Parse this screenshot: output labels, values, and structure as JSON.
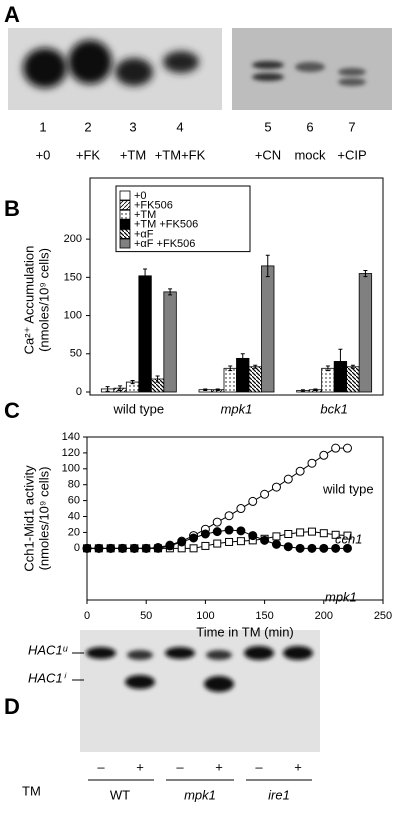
{
  "panel_labels": [
    "A",
    "B",
    "C",
    "D"
  ],
  "gel_a": {
    "lanes": [
      "1",
      "2",
      "3",
      "4",
      "5",
      "6",
      "7"
    ],
    "treatments": [
      "+0",
      "+FK",
      "+TM",
      "+TM+FK",
      "+CN",
      "mock",
      "+CIP"
    ]
  },
  "chart_data": [
    {
      "type": "bar",
      "ylabel": [
        "Ca²⁺ Accumulation",
        "(nmoles/10⁹ cells)"
      ],
      "categories": [
        "wild type",
        "mpk1",
        "bck1"
      ],
      "series": [
        {
          "name": "+0",
          "color": "#ffffff",
          "pattern": "none",
          "values": [
            4,
            3,
            2
          ],
          "errors": [
            3,
            1,
            1
          ]
        },
        {
          "name": "+FK506",
          "color": "#ffffff",
          "pattern": "hatch",
          "values": [
            5,
            3,
            3
          ],
          "errors": [
            3,
            1,
            1
          ]
        },
        {
          "name": "+TM",
          "color": "#ffffff",
          "pattern": "dots",
          "values": [
            13,
            31,
            31
          ],
          "errors": [
            2,
            3,
            3
          ]
        },
        {
          "name": "+TM +FK506",
          "color": "#000000",
          "pattern": "none",
          "values": [
            152,
            44,
            40
          ],
          "errors": [
            9,
            6,
            16
          ]
        },
        {
          "name": "+αF",
          "color": "#ffffff",
          "pattern": "diag",
          "values": [
            17,
            33,
            33
          ],
          "errors": [
            4,
            2,
            2
          ]
        },
        {
          "name": "+αF +FK506",
          "color": "#808080",
          "pattern": "none",
          "values": [
            131,
            165,
            155
          ],
          "errors": [
            4,
            14,
            4
          ]
        }
      ],
      "ylim": [
        0,
        280
      ],
      "yticks": [
        0,
        50,
        100,
        150,
        200
      ],
      "legend": "top-left"
    },
    {
      "type": "line",
      "xlabel": "Time in TM (min)",
      "ylabel": [
        "Cch1-Mid1 activity",
        "(nmoles/10⁹ cells)"
      ],
      "x": [
        0,
        10,
        20,
        30,
        40,
        50,
        60,
        70,
        80,
        90,
        100,
        110,
        120,
        130,
        140,
        150,
        160,
        170,
        180,
        190,
        200,
        210,
        220
      ],
      "series": [
        {
          "name": "wild type",
          "color": "#ffffff",
          "marker": "circle",
          "values": [
            0,
            0,
            0,
            0,
            0,
            0,
            1,
            4,
            9,
            16,
            24,
            33,
            41,
            50,
            59,
            68,
            77,
            87,
            97,
            107,
            117,
            126,
            126
          ]
        },
        {
          "name": "cch1",
          "color": "#ffffff",
          "marker": "square",
          "values": [
            0,
            0,
            0,
            0,
            0,
            0,
            0,
            0,
            0,
            0,
            3,
            6,
            8,
            9,
            10,
            12,
            15,
            18,
            20,
            21,
            19,
            17,
            16
          ]
        },
        {
          "name": "mpk1",
          "color": "#000000",
          "marker": "circle",
          "values": [
            0,
            0,
            0,
            0,
            0,
            0,
            0,
            3,
            8,
            13,
            18,
            21,
            23,
            22,
            16,
            10,
            5,
            2,
            0,
            0,
            0,
            0,
            0
          ]
        }
      ],
      "xlim": [
        0,
        250
      ],
      "xticks": [
        0,
        50,
        100,
        150,
        200,
        250
      ],
      "ylim": [
        -65,
        140
      ],
      "yticks": [
        0,
        20,
        40,
        60,
        80,
        100,
        120,
        140
      ]
    }
  ],
  "gel_d": {
    "markers": [
      "HAC1ᵘ",
      "HAC1ⁱ"
    ],
    "lanes": [
      "–",
      "+",
      "–",
      "+",
      "–",
      "+"
    ],
    "treatment_label": "TM",
    "strains": [
      "WT",
      "mpk1",
      "ire1"
    ]
  }
}
